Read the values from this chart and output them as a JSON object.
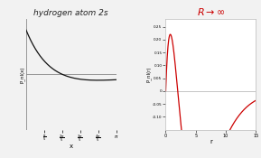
{
  "left_title": "hydrogen atom 2s",
  "right_title_math": "R \\rightarrow \\infty",
  "left_ylabel": "P_nl(x)",
  "right_ylabel": "P_nl(r)",
  "left_xlabel": "x",
  "right_xlabel": "r",
  "left_xlim": [
    0,
    3.14159
  ],
  "left_ylim": [
    -0.3,
    0.3
  ],
  "right_xlim": [
    0,
    15
  ],
  "right_ylim": [
    -0.15,
    0.28
  ],
  "left_xticks": [
    0.6283,
    1.2566,
    1.8849,
    2.5133,
    3.14159
  ],
  "right_xticks": [
    0,
    5,
    10,
    15
  ],
  "right_yticks": [
    -0.1,
    -0.05,
    0.0,
    0.05,
    0.1,
    0.15,
    0.2,
    0.25
  ],
  "background_color": "#f2f2f2",
  "plot_bg_color": "#ffffff",
  "left_curve_color": "#111111",
  "right_curve_color": "#cc0000",
  "axis_color": "#888888",
  "title_color_left": "#222222",
  "title_color_right": "#cc0000",
  "grid_color": "#cccccc",
  "right_ytick_labels": [
    "-0.10",
    "-0.05",
    "0",
    "0.05",
    "0.10",
    "0.15",
    "0.20",
    "0.25"
  ]
}
